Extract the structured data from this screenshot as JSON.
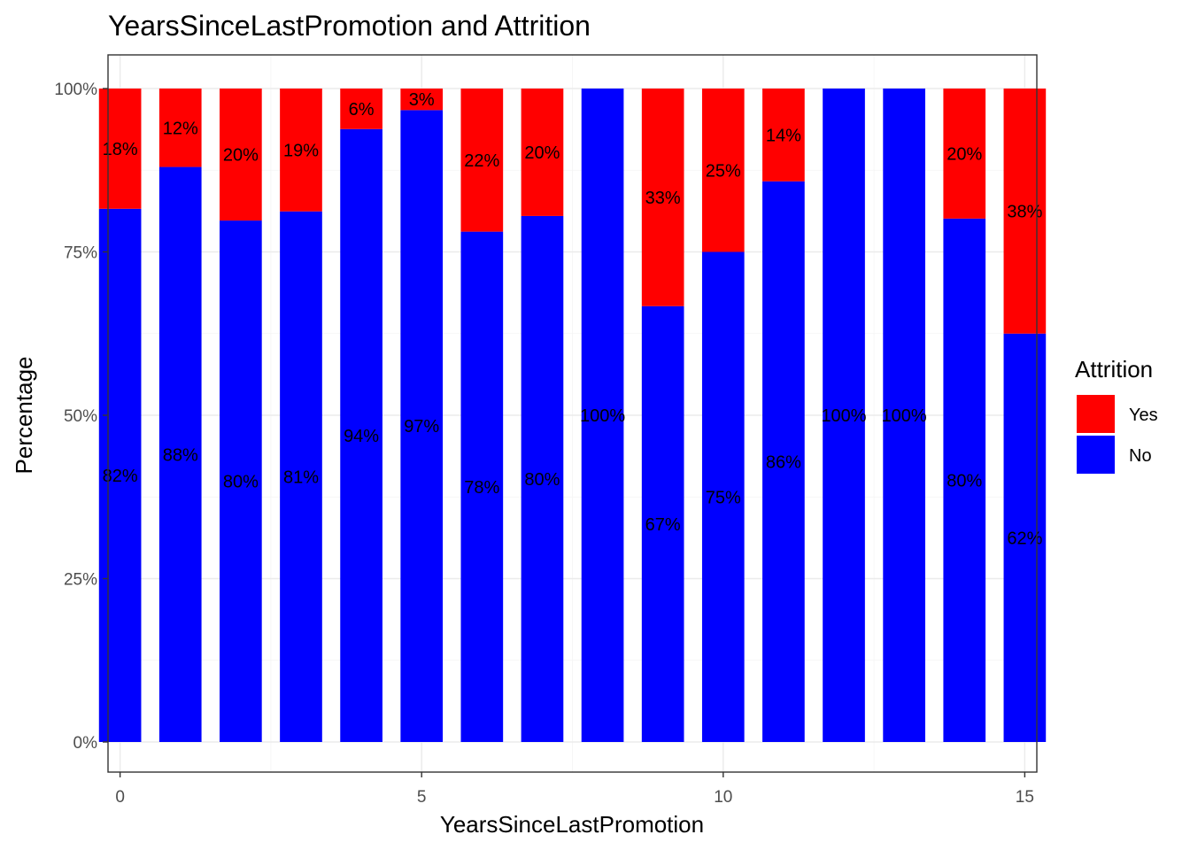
{
  "chart_data": {
    "type": "bar",
    "stacked": true,
    "title": "YearsSinceLastPromotion and Attrition",
    "xlabel": "YearsSinceLastPromotion",
    "ylabel": "Percentage",
    "x": [
      0,
      1,
      2,
      3,
      4,
      5,
      6,
      7,
      8,
      9,
      10,
      11,
      12,
      13,
      14,
      15
    ],
    "xlim": [
      -0.2,
      15.2
    ],
    "x_ticks": [
      0,
      5,
      10,
      15
    ],
    "x_tick_labels": [
      "0",
      "5",
      "10",
      "15"
    ],
    "ylim": [
      0,
      100
    ],
    "y_ticks": [
      0,
      25,
      50,
      75,
      100
    ],
    "y_tick_labels": [
      "0%",
      "25%",
      "50%",
      "75%",
      "100%"
    ],
    "grid": true,
    "legend": {
      "title": "Attrition",
      "position": "right"
    },
    "series": [
      {
        "name": "Yes",
        "color": "#ff0000",
        "values": [
          18.4,
          12.0,
          20.2,
          18.8,
          6.2,
          3.3,
          21.9,
          19.5,
          0,
          33.3,
          25.0,
          14.2,
          0,
          0,
          19.9,
          37.5
        ],
        "labels": [
          "18%",
          "12%",
          "20%",
          "19%",
          "6%",
          "3%",
          "22%",
          "20%",
          "",
          "33%",
          "25%",
          "14%",
          "",
          "",
          "20%",
          "38%"
        ]
      },
      {
        "name": "No",
        "color": "#0000ff",
        "values": [
          81.6,
          88.0,
          79.8,
          81.2,
          93.8,
          96.7,
          78.1,
          80.5,
          100,
          66.7,
          75.0,
          85.8,
          100,
          100,
          80.1,
          62.5
        ],
        "labels": [
          "82%",
          "88%",
          "80%",
          "81%",
          "94%",
          "97%",
          "78%",
          "80%",
          "100%",
          "67%",
          "75%",
          "86%",
          "100%",
          "100%",
          "80%",
          "62%"
        ]
      }
    ]
  }
}
